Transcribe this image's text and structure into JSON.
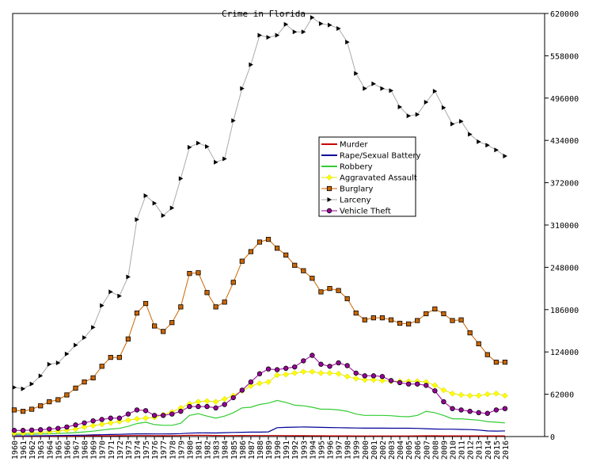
{
  "chart_data": {
    "type": "line",
    "title": "Crime in Florida",
    "xlabel": "",
    "ylabel": "",
    "ylim": [
      0,
      620000
    ],
    "y_ticks": [
      "0",
      "62000",
      "124000",
      "186000",
      "248000",
      "310000",
      "372000",
      "434000",
      "496000",
      "558000",
      "620000"
    ],
    "y_tick_values": [
      0,
      62000,
      124000,
      186000,
      248000,
      310000,
      372000,
      434000,
      496000,
      558000,
      620000
    ],
    "grid": false,
    "legend_position": "center-right",
    "categories": [
      "1960",
      "1961",
      "1962",
      "1963",
      "1964",
      "1965",
      "1966",
      "1967",
      "1968",
      "1969",
      "1970",
      "1971",
      "1972",
      "1973",
      "1974",
      "1975",
      "1976",
      "1977",
      "1978",
      "1979",
      "1980",
      "1981",
      "1982",
      "1983",
      "1984",
      "1985",
      "1986",
      "1987",
      "1988",
      "1989",
      "1990",
      "1991",
      "1992",
      "1993",
      "1994",
      "1995",
      "1996",
      "1997",
      "1998",
      "1999",
      "2000",
      "2001",
      "2002",
      "2003",
      "2004",
      "2005",
      "2006",
      "2007",
      "2008",
      "2009",
      "2010",
      "2011",
      "2012",
      "2013",
      "2014",
      "2015",
      "2016"
    ],
    "series": [
      {
        "name": "Murder",
        "color": "#cc0000",
        "marker": "none",
        "values": [
          500,
          500,
          520,
          540,
          600,
          650,
          700,
          800,
          900,
          1000,
          1100,
          1200,
          1300,
          1400,
          1500,
          1500,
          1400,
          1300,
          1400,
          1500,
          1800,
          1900,
          1800,
          1600,
          1500,
          1500,
          1600,
          1500,
          1500,
          1500,
          1500,
          1400,
          1300,
          1300,
          1200,
          1200,
          1100,
          1000,
          1000,
          900,
          900,
          900,
          900,
          900,
          900,
          900,
          1100,
          1200,
          1200,
          1100,
          1000,
          1000,
          1000,
          1000,
          1100,
          1100,
          1100
        ]
      },
      {
        "name": "Rape/Sexual Battery",
        "color": "#000099",
        "marker": "none",
        "values": [
          1000,
          1000,
          1100,
          1200,
          1300,
          1500,
          1700,
          1900,
          2100,
          2400,
          2700,
          3000,
          3300,
          3600,
          3900,
          3900,
          3800,
          3800,
          4000,
          4300,
          5000,
          5500,
          5300,
          5200,
          5700,
          6000,
          6300,
          6500,
          6500,
          6800,
          13000,
          13500,
          13800,
          14000,
          13800,
          13500,
          13200,
          13000,
          12800,
          12500,
          12300,
          12300,
          12300,
          12200,
          12200,
          12200,
          12000,
          11500,
          11000,
          10800,
          10800,
          10500,
          10200,
          9500,
          8200,
          8000,
          8200
        ]
      },
      {
        "name": "Robbery",
        "color": "#33cc33",
        "marker": "none",
        "values": [
          3000,
          3200,
          3400,
          3700,
          4100,
          4500,
          5000,
          5800,
          6800,
          7900,
          9500,
          11000,
          12000,
          15000,
          19000,
          21000,
          17500,
          16500,
          16500,
          19500,
          31000,
          33500,
          30000,
          27000,
          30000,
          35000,
          42000,
          43000,
          47000,
          49000,
          53000,
          50000,
          46000,
          45000,
          43000,
          40000,
          40000,
          39000,
          37000,
          33000,
          31000,
          31000,
          31000,
          30500,
          29500,
          29000,
          31000,
          37000,
          35000,
          31000,
          26000,
          26000,
          25000,
          24000,
          22000,
          21000,
          20000
        ]
      },
      {
        "name": "Aggravated Assault",
        "color": "#ffff00",
        "marker": "diamond",
        "values": [
          5000,
          5000,
          5500,
          6000,
          7000,
          8000,
          9500,
          11000,
          14000,
          16000,
          18000,
          20000,
          22000,
          24000,
          26000,
          27000,
          28000,
          32000,
          36000,
          42000,
          48000,
          51000,
          52000,
          51000,
          55000,
          60000,
          67000,
          74000,
          78000,
          80000,
          90000,
          91000,
          93000,
          95000,
          95000,
          93000,
          93000,
          92000,
          88000,
          85000,
          83000,
          83000,
          82000,
          81000,
          81000,
          81000,
          81000,
          80000,
          75000,
          68000,
          63000,
          61000,
          60000,
          60000,
          62000,
          63000,
          60000
        ]
      },
      {
        "name": "Burglary",
        "color": "#cc6600",
        "marker": "square",
        "values": [
          39000,
          37000,
          40000,
          45000,
          51000,
          54000,
          61000,
          71000,
          80000,
          86000,
          103000,
          116000,
          116000,
          143000,
          181000,
          195000,
          162000,
          154000,
          167000,
          190000,
          239000,
          240000,
          211000,
          190000,
          197000,
          226000,
          257000,
          271000,
          285000,
          289000,
          276000,
          266000,
          251000,
          243000,
          232000,
          212000,
          217000,
          214000,
          202000,
          181000,
          171000,
          174000,
          174000,
          171000,
          166000,
          165000,
          170000,
          180000,
          187000,
          180000,
          170000,
          171000,
          152000,
          136000,
          120000,
          109000,
          109000
        ]
      },
      {
        "name": "Larceny",
        "color": "#aaaaaa",
        "marker": "triangle",
        "values": [
          72000,
          70000,
          77000,
          89000,
          106000,
          108000,
          121000,
          134000,
          145000,
          160000,
          192000,
          212000,
          206000,
          234000,
          318000,
          353000,
          342000,
          324000,
          335000,
          378000,
          424000,
          430000,
          425000,
          402000,
          407000,
          463000,
          510000,
          545000,
          588000,
          585000,
          588000,
          604000,
          593000,
          593000,
          614000,
          605000,
          603000,
          598000,
          578000,
          532000,
          510000,
          517000,
          510000,
          507000,
          483000,
          470000,
          472000,
          490000,
          506000,
          482000,
          458000,
          462000,
          443000,
          432000,
          427000,
          420000,
          411000
        ]
      },
      {
        "name": "Vehicle Theft",
        "color": "#990099",
        "marker": "circle",
        "values": [
          9000,
          9000,
          9500,
          10000,
          11000,
          12000,
          14000,
          17000,
          20000,
          23000,
          25000,
          27000,
          27000,
          33000,
          39000,
          38000,
          31000,
          31000,
          33000,
          37000,
          44000,
          44000,
          44000,
          42000,
          47000,
          57000,
          68000,
          80000,
          92000,
          99000,
          98000,
          100000,
          102000,
          111000,
          119000,
          106000,
          103000,
          108000,
          104000,
          93000,
          89000,
          89000,
          88000,
          82000,
          79000,
          77000,
          77000,
          75000,
          67000,
          51000,
          41000,
          39000,
          37000,
          35000,
          34000,
          39000,
          41000
        ]
      }
    ]
  }
}
